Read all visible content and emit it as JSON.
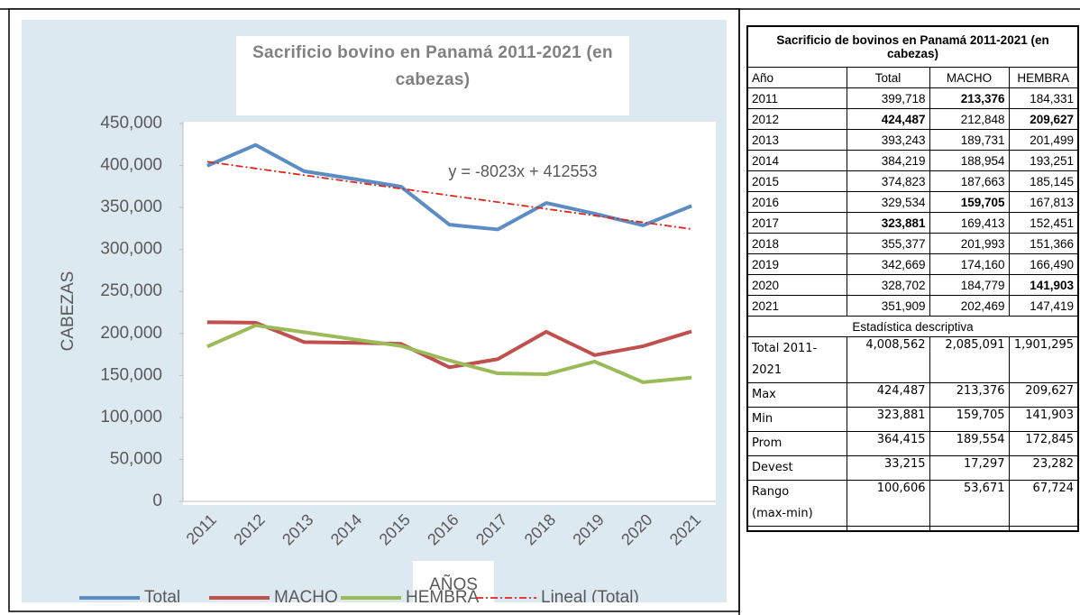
{
  "chart_data": {
    "type": "line",
    "title": "Sacrificio bovino en Panamá 2011-2021 (en cabezas)",
    "x_label": "AÑOS",
    "y_label": "CABEZAS",
    "categories": [
      "2011",
      "2012",
      "2013",
      "2014",
      "2015",
      "2016",
      "2017",
      "2018",
      "2019",
      "2020",
      "2021"
    ],
    "series": [
      {
        "name": "Total",
        "color": "#5b8cc4",
        "values": [
          399718,
          424487,
          393243,
          384219,
          374823,
          329534,
          323881,
          355377,
          342669,
          328702,
          351909
        ]
      },
      {
        "name": "MACHO",
        "color": "#c0504d",
        "values": [
          213376,
          212848,
          189731,
          188954,
          187663,
          159705,
          169413,
          201993,
          174160,
          184779,
          202469
        ]
      },
      {
        "name": "HEMBRA",
        "color": "#9bbb59",
        "values": [
          184331,
          209627,
          201499,
          193251,
          185145,
          167813,
          152451,
          151366,
          166490,
          141903,
          147419
        ]
      }
    ],
    "trendline": {
      "name": "Lineal (Total)",
      "label": "y = -8023x + 412553",
      "slope": -8023,
      "intercept": 412553,
      "color": "#e0261b"
    },
    "ylim": [
      0,
      450000
    ],
    "yticks": [
      0,
      {
        "value": 50000,
        "label": "50,000"
      },
      {
        "value": 100000,
        "label": "100,000"
      },
      {
        "value": 150000,
        "label": "150,000"
      },
      {
        "value": 200000,
        "label": "200,000"
      },
      {
        "value": 250000,
        "label": "250,000"
      },
      {
        "value": 300000,
        "label": "300,000"
      },
      {
        "value": 350000,
        "label": "350,000"
      },
      {
        "value": 400000,
        "label": "400,000"
      },
      {
        "value": 450000,
        "label": "450,000"
      }
    ],
    "grid": false,
    "legend": "bottom"
  },
  "table": {
    "title": "Sacrificio de bovinos en Panamá 2011-2021 (en cabezas)",
    "header": [
      "Año",
      "Total",
      "MACHO",
      "HEMBRA"
    ],
    "rows": [
      [
        "2011",
        "399,718",
        "213,376",
        "184,331"
      ],
      [
        "2012",
        "424,487",
        "212,848",
        "209,627"
      ],
      [
        "2013",
        "393,243",
        "189,731",
        "201,499"
      ],
      [
        "2014",
        "384,219",
        "188,954",
        "193,251"
      ],
      [
        "2015",
        "374,823",
        "187,663",
        "185,145"
      ],
      [
        "2016",
        "329,534",
        "159,705",
        "167,813"
      ],
      [
        "2017",
        "323,881",
        "169,413",
        "152,451"
      ],
      [
        "2018",
        "355,377",
        "201,993",
        "151,366"
      ],
      [
        "2019",
        "342,669",
        "174,160",
        "166,490"
      ],
      [
        "2020",
        "328,702",
        "184,779",
        "141,903"
      ],
      [
        "2021",
        "351,909",
        "202,469",
        "147,419"
      ]
    ],
    "section": "Estadística descriptiva",
    "stats": [
      [
        "Total 2011-2021",
        "4,008,562",
        "2,085,091",
        "1,901,295"
      ],
      [
        "Max",
        "424,487",
        "213,376",
        "209,627"
      ],
      [
        "Min",
        "323,881",
        "159,705",
        "141,903"
      ],
      [
        "Prom",
        "364,415",
        "189,554",
        "172,845"
      ],
      [
        "Devest",
        "33,215",
        "17,297",
        "23,282"
      ],
      [
        "Rango (max-min)",
        "100,606",
        "53,671",
        "67,724"
      ]
    ],
    "bold": [
      [
        0,
        2
      ],
      [
        1,
        1
      ],
      [
        1,
        3
      ],
      [
        5,
        2
      ],
      [
        6,
        1
      ],
      [
        9,
        3
      ]
    ]
  }
}
